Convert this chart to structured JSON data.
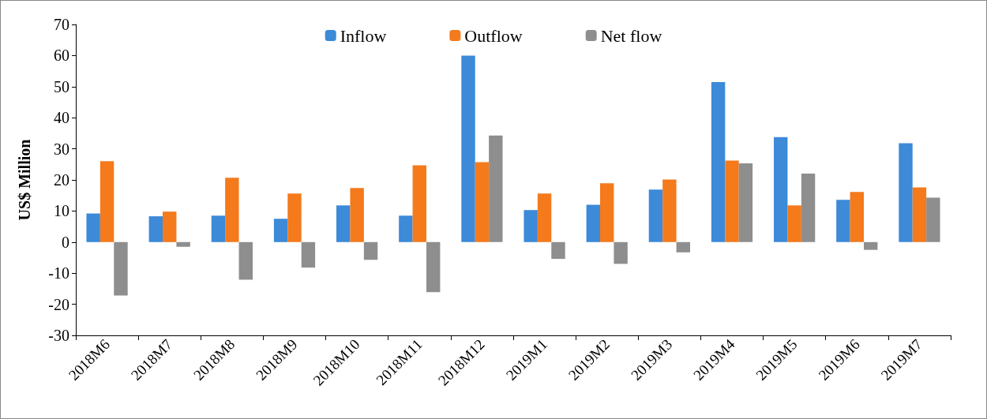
{
  "chart_data": {
    "type": "bar",
    "ylabel": "US$ Million",
    "categories": [
      "2018M6",
      "2018M7",
      "2018M8",
      "2018M9",
      "2018M10",
      "2018M11",
      "2018M12",
      "2019M1",
      "2019M2",
      "2019M3",
      "2019M4",
      "2019M5",
      "2019M6",
      "2019M7"
    ],
    "series": [
      {
        "name": "Inflow",
        "color": "#3c8ad8",
        "values": [
          9.2,
          8.3,
          8.5,
          7.5,
          11.8,
          8.5,
          60,
          10.3,
          12,
          16.9,
          51.5,
          33.8,
          13.6,
          31.8
        ]
      },
      {
        "name": "Outflow",
        "color": "#f47a1c",
        "values": [
          26,
          9.8,
          20.7,
          15.6,
          17.4,
          24.7,
          25.7,
          15.6,
          18.9,
          20.1,
          26.2,
          11.8,
          16.1,
          17.6
        ]
      },
      {
        "name": "Net flow",
        "color": "#8e8e8e",
        "values": [
          -17.2,
          -1.5,
          -12.1,
          -8.2,
          -5.7,
          -16.1,
          34.3,
          -5.4,
          -7,
          -3.3,
          25.3,
          22,
          -2.5,
          14.3
        ]
      }
    ],
    "ylim": [
      -30,
      70
    ],
    "yticks": [
      -30,
      -20,
      -10,
      0,
      10,
      20,
      30,
      40,
      50,
      60,
      70
    ],
    "legend": "top"
  }
}
